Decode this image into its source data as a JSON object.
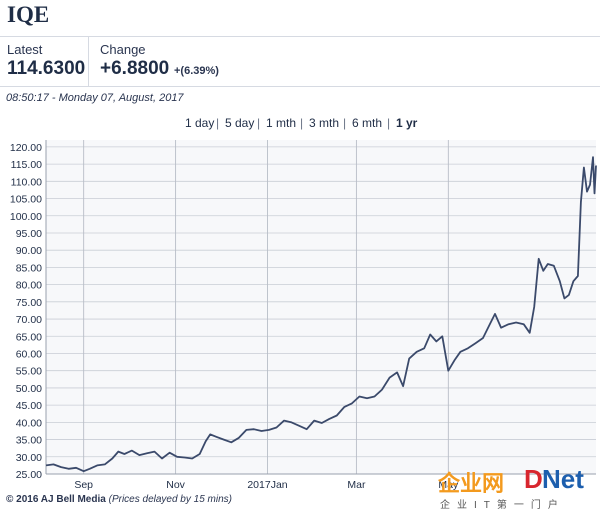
{
  "header": {
    "ticker": "IQE",
    "latest_label": "Latest",
    "latest_value": "114.6300",
    "change_label": "Change",
    "change_value": "+6.8800",
    "change_pct": "+(6.39%)",
    "timestamp": "08:50:17 - Monday 07, August, 2017"
  },
  "ranges": [
    {
      "label": "1 day",
      "active": false
    },
    {
      "label": "5 day",
      "active": false
    },
    {
      "label": "1 mth",
      "active": false
    },
    {
      "label": "3 mth",
      "active": false
    },
    {
      "label": "6 mth",
      "active": false
    },
    {
      "label": "1 yr",
      "active": true
    }
  ],
  "footer": {
    "copyright": "© 2016 AJ Bell Media",
    "note": "(Prices delayed by 15 mins)"
  },
  "watermark": {
    "cn": "企业网",
    "d": "D",
    "net": "Net",
    "sub": "企业IT第一门户"
  },
  "colors": {
    "line": "#3b4a6b",
    "grid": "#c9cdd5",
    "text": "#1f2d46"
  },
  "chart_data": {
    "type": "line",
    "ylim": [
      25,
      122
    ],
    "yticks": [
      "120.00",
      "115.00",
      "110.00",
      "105.00",
      "100.00",
      "95.00",
      "90.00",
      "85.00",
      "80.00",
      "75.00",
      "70.00",
      "65.00",
      "60.00",
      "55.00",
      "50.00",
      "45.00",
      "40.00",
      "35.00",
      "30.00",
      "25.00"
    ],
    "xtick_labels": [
      "Sep",
      "Nov",
      "2017Jan",
      "Mar",
      "May"
    ],
    "xtick_dates": [
      "2016-09-01",
      "2016-11-01",
      "2017-01-01",
      "2017-03-01",
      "2017-05-01"
    ],
    "xrange": [
      "2016-08-07",
      "2017-08-07"
    ],
    "grid": true,
    "series": [
      {
        "points": [
          [
            "2016-08-07",
            27.5
          ],
          [
            "2016-08-12",
            27.8
          ],
          [
            "2016-08-17",
            27.0
          ],
          [
            "2016-08-22",
            26.5
          ],
          [
            "2016-08-27",
            26.8
          ],
          [
            "2016-09-01",
            25.8
          ],
          [
            "2016-09-05",
            26.5
          ],
          [
            "2016-09-10",
            27.5
          ],
          [
            "2016-09-15",
            27.8
          ],
          [
            "2016-09-20",
            29.5
          ],
          [
            "2016-09-24",
            31.5
          ],
          [
            "2016-09-28",
            30.8
          ],
          [
            "2016-10-03",
            31.8
          ],
          [
            "2016-10-08",
            30.5
          ],
          [
            "2016-10-13",
            31.0
          ],
          [
            "2016-10-18",
            31.5
          ],
          [
            "2016-10-23",
            29.5
          ],
          [
            "2016-10-28",
            31.2
          ],
          [
            "2016-11-02",
            30.0
          ],
          [
            "2016-11-07",
            29.8
          ],
          [
            "2016-11-12",
            29.5
          ],
          [
            "2016-11-17",
            30.8
          ],
          [
            "2016-11-21",
            34.5
          ],
          [
            "2016-11-24",
            36.5
          ],
          [
            "2016-11-28",
            35.8
          ],
          [
            "2016-12-03",
            35.0
          ],
          [
            "2016-12-08",
            34.2
          ],
          [
            "2016-12-13",
            35.5
          ],
          [
            "2016-12-18",
            37.8
          ],
          [
            "2016-12-23",
            38.0
          ],
          [
            "2016-12-28",
            37.5
          ],
          [
            "2017-01-02",
            37.8
          ],
          [
            "2017-01-07",
            38.5
          ],
          [
            "2017-01-12",
            40.5
          ],
          [
            "2017-01-17",
            40.0
          ],
          [
            "2017-01-22",
            39.0
          ],
          [
            "2017-01-27",
            38.0
          ],
          [
            "2017-02-01",
            40.5
          ],
          [
            "2017-02-06",
            39.8
          ],
          [
            "2017-02-11",
            41.0
          ],
          [
            "2017-02-16",
            42.0
          ],
          [
            "2017-02-21",
            44.5
          ],
          [
            "2017-02-26",
            45.5
          ],
          [
            "2017-03-03",
            47.5
          ],
          [
            "2017-03-08",
            47.0
          ],
          [
            "2017-03-13",
            47.5
          ],
          [
            "2017-03-18",
            49.5
          ],
          [
            "2017-03-23",
            53.0
          ],
          [
            "2017-03-28",
            54.5
          ],
          [
            "2017-04-01",
            50.5
          ],
          [
            "2017-04-05",
            58.5
          ],
          [
            "2017-04-10",
            60.5
          ],
          [
            "2017-04-15",
            61.5
          ],
          [
            "2017-04-19",
            65.5
          ],
          [
            "2017-04-23",
            63.5
          ],
          [
            "2017-04-27",
            65.0
          ],
          [
            "2017-05-01",
            55.0
          ],
          [
            "2017-05-05",
            58.0
          ],
          [
            "2017-05-09",
            60.5
          ],
          [
            "2017-05-14",
            61.5
          ],
          [
            "2017-05-19",
            63.0
          ],
          [
            "2017-05-24",
            64.5
          ],
          [
            "2017-05-28",
            68.0
          ],
          [
            "2017-06-01",
            71.5
          ],
          [
            "2017-06-05",
            67.5
          ],
          [
            "2017-06-10",
            68.5
          ],
          [
            "2017-06-15",
            69.0
          ],
          [
            "2017-06-20",
            68.5
          ],
          [
            "2017-06-24",
            66.0
          ],
          [
            "2017-06-27",
            73.5
          ],
          [
            "2017-06-30",
            87.5
          ],
          [
            "2017-07-03",
            84.0
          ],
          [
            "2017-07-06",
            86.0
          ],
          [
            "2017-07-10",
            85.5
          ],
          [
            "2017-07-14",
            81.0
          ],
          [
            "2017-07-17",
            76.0
          ],
          [
            "2017-07-20",
            77.0
          ],
          [
            "2017-07-23",
            81.0
          ],
          [
            "2017-07-26",
            82.5
          ],
          [
            "2017-07-28",
            104.0
          ],
          [
            "2017-07-30",
            114.0
          ],
          [
            "2017-08-01",
            107.0
          ],
          [
            "2017-08-03",
            109.0
          ],
          [
            "2017-08-05",
            117.0
          ],
          [
            "2017-08-06",
            106.5
          ],
          [
            "2017-08-07",
            114.6
          ]
        ]
      }
    ]
  }
}
